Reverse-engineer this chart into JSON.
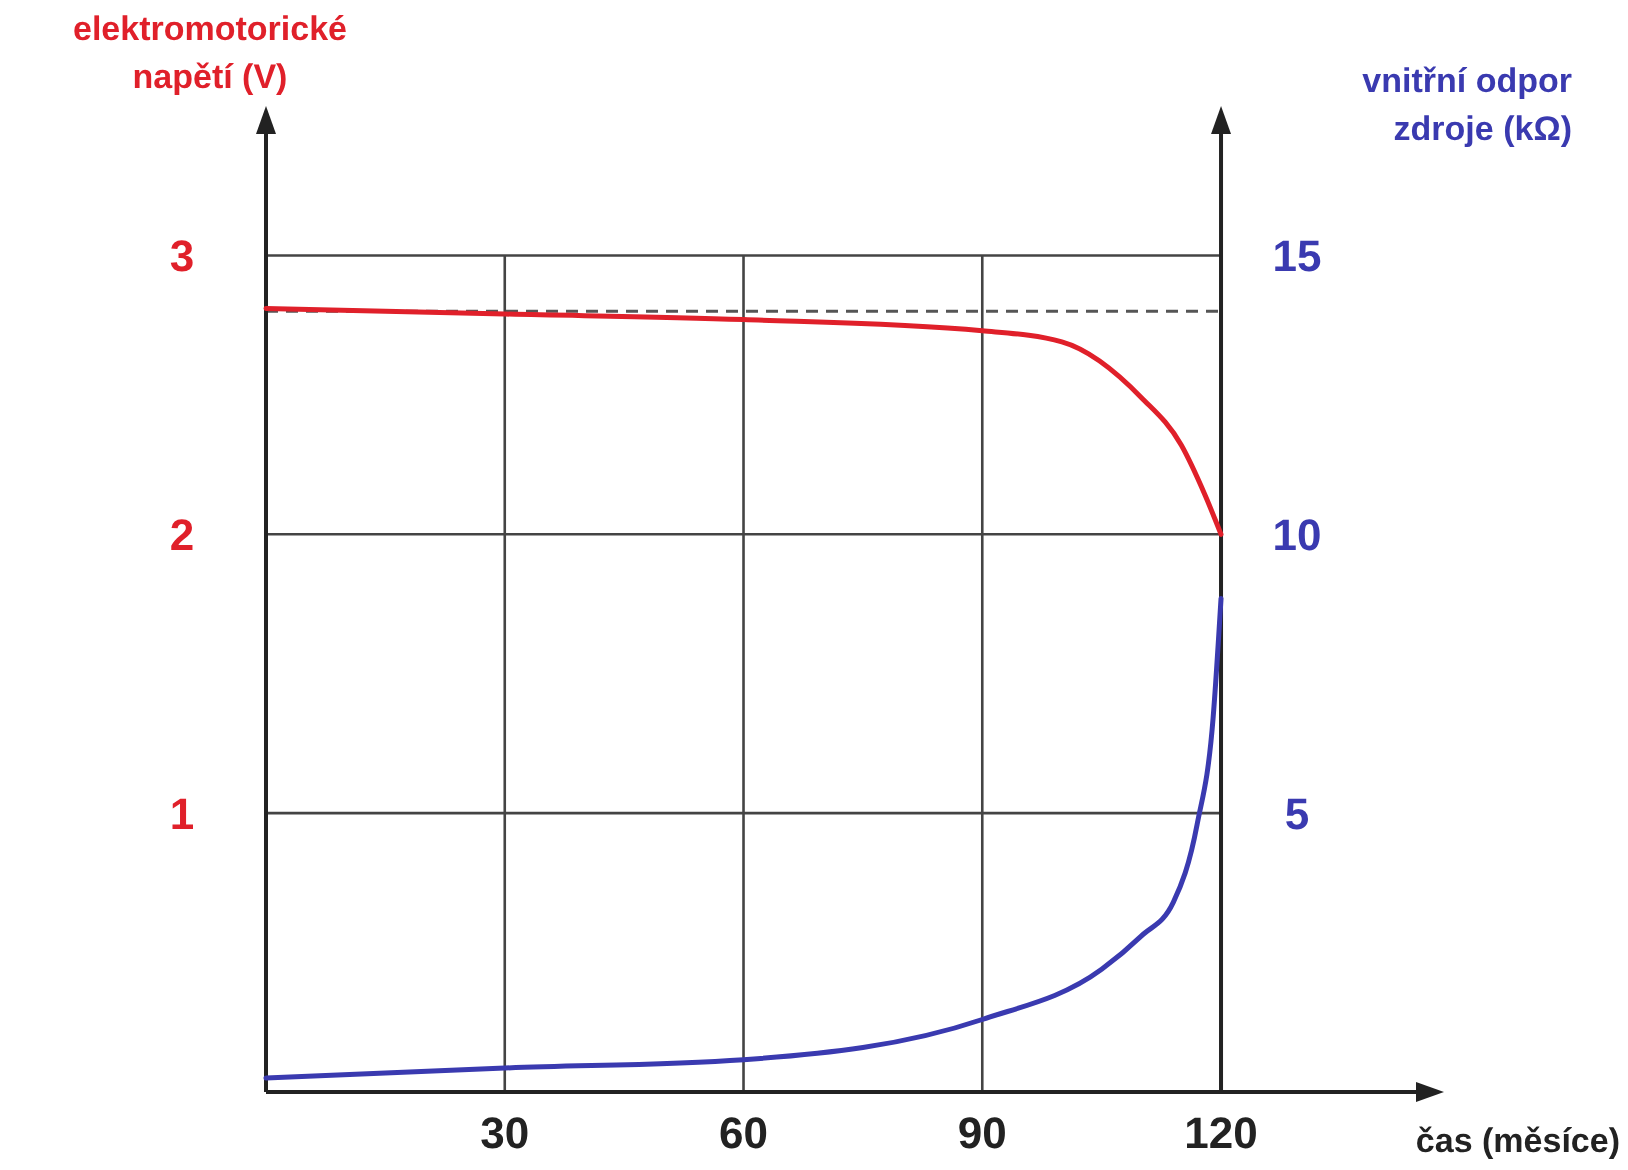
{
  "chart_data": {
    "type": "line",
    "xlabel": "čas (měsíce)",
    "ylabel": "elektromotorické napětí (V)",
    "y2label": "vnitřní odpor zdroje (kΩ)",
    "xlim": [
      0,
      145
    ],
    "xticks": [
      30,
      60,
      90,
      120
    ],
    "ylim": [
      0,
      3.45
    ],
    "yticks": [
      1,
      2,
      3
    ],
    "y2lim": [
      0,
      17.25
    ],
    "y2ticks": [
      5,
      10,
      15
    ],
    "grid": true,
    "series": [
      {
        "color": "#e0202a",
        "x": [
          0,
          30,
          60,
          90,
          100,
          110,
          115,
          118,
          120
        ],
        "values": [
          2.81,
          2.79,
          2.77,
          2.73,
          2.69,
          2.49,
          2.32,
          2.14,
          2.0
        ]
      },
      {
        "color": "#3a3ab0",
        "axis": "y2",
        "x": [
          0,
          30,
          60,
          90,
          105,
          110,
          114,
          117,
          119,
          120
        ],
        "values": [
          0.25,
          0.43,
          0.58,
          1.3,
          2.2,
          2.8,
          3.4,
          4.8,
          6.7,
          8.85
        ]
      }
    ],
    "ref_lines": [
      {
        "axis": "y",
        "value": 2.8,
        "color": "#555555",
        "line_style": "dashed"
      }
    ]
  }
}
